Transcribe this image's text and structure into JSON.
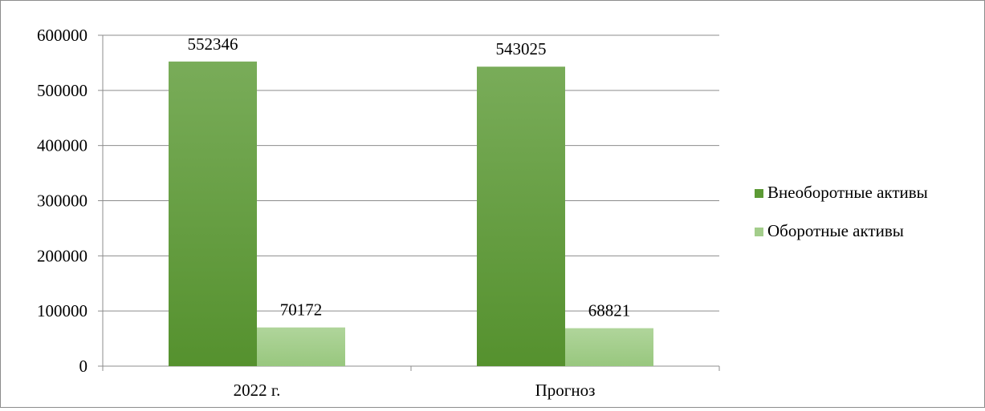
{
  "chart_data": {
    "type": "bar",
    "categories": [
      "2022 г.",
      "Прогноз"
    ],
    "series": [
      {
        "name": "Внеоборотные активы",
        "values": [
          552346,
          543025
        ],
        "color": "#5c9a35"
      },
      {
        "name": "Оборотные активы",
        "values": [
          70172,
          68821
        ],
        "color": "#a3cd8b"
      }
    ],
    "y_ticks": [
      0,
      100000,
      200000,
      300000,
      400000,
      500000,
      600000
    ],
    "ylim": [
      0,
      600000
    ],
    "grid": true,
    "legend_position": "right",
    "data_labels": true
  }
}
